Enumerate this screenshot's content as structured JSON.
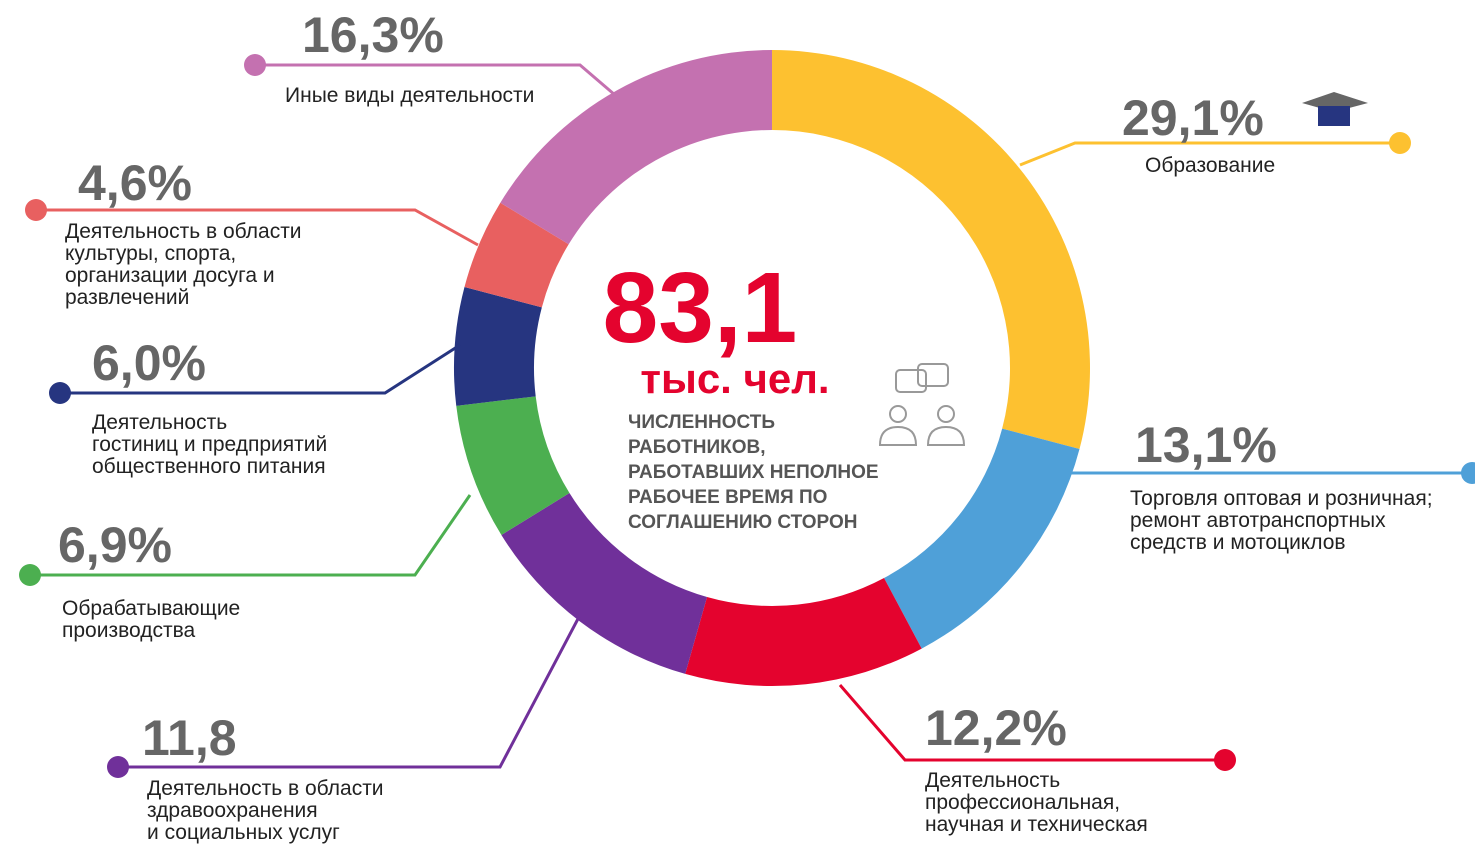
{
  "chart_data": {
    "type": "donut",
    "categories": [
      [
        "Образование"
      ],
      [
        "Торговля оптовая и розничная;",
        "ремонт автотранспортных",
        "средств и мотоциклов"
      ],
      [
        "Деятельность",
        "профессиональная,",
        "научная и техническая"
      ],
      [
        "Деятельность в области",
        "здравоохранения",
        "и социальных услуг"
      ],
      [
        "Обрабатывающие",
        "производства"
      ],
      [
        "Деятельность",
        "гостиниц и предприятий",
        "общественного питания"
      ],
      [
        "Деятельность в области",
        "культуры, спорта,",
        "организации досуга и",
        "развлечений"
      ],
      [
        "Иные виды деятельности"
      ]
    ],
    "values": [
      29.1,
      13.1,
      12.2,
      11.8,
      6.9,
      6.0,
      4.6,
      16.3
    ],
    "value_labels": [
      "29,1%",
      "13,1%",
      "12,2%",
      "11,8",
      "6,9%",
      "6,0%",
      "4,6%",
      "16,3%"
    ],
    "colors": [
      "#fdc130",
      "#4fa0d8",
      "#e4032e",
      "#70309a",
      "#4caf50",
      "#263580",
      "#e86060",
      "#c471b0"
    ],
    "total": "83,1",
    "total_unit": "тыс. чел.",
    "description": [
      "ЧИСЛЕННОСТЬ",
      "РАБОТНИКОВ,",
      "РАБОТАВШИХ НЕПОЛНОЕ",
      "РАБОЧЕЕ ВРЕМЯ ПО",
      "СОГЛАШЕНИЮ СТОРОН"
    ]
  }
}
